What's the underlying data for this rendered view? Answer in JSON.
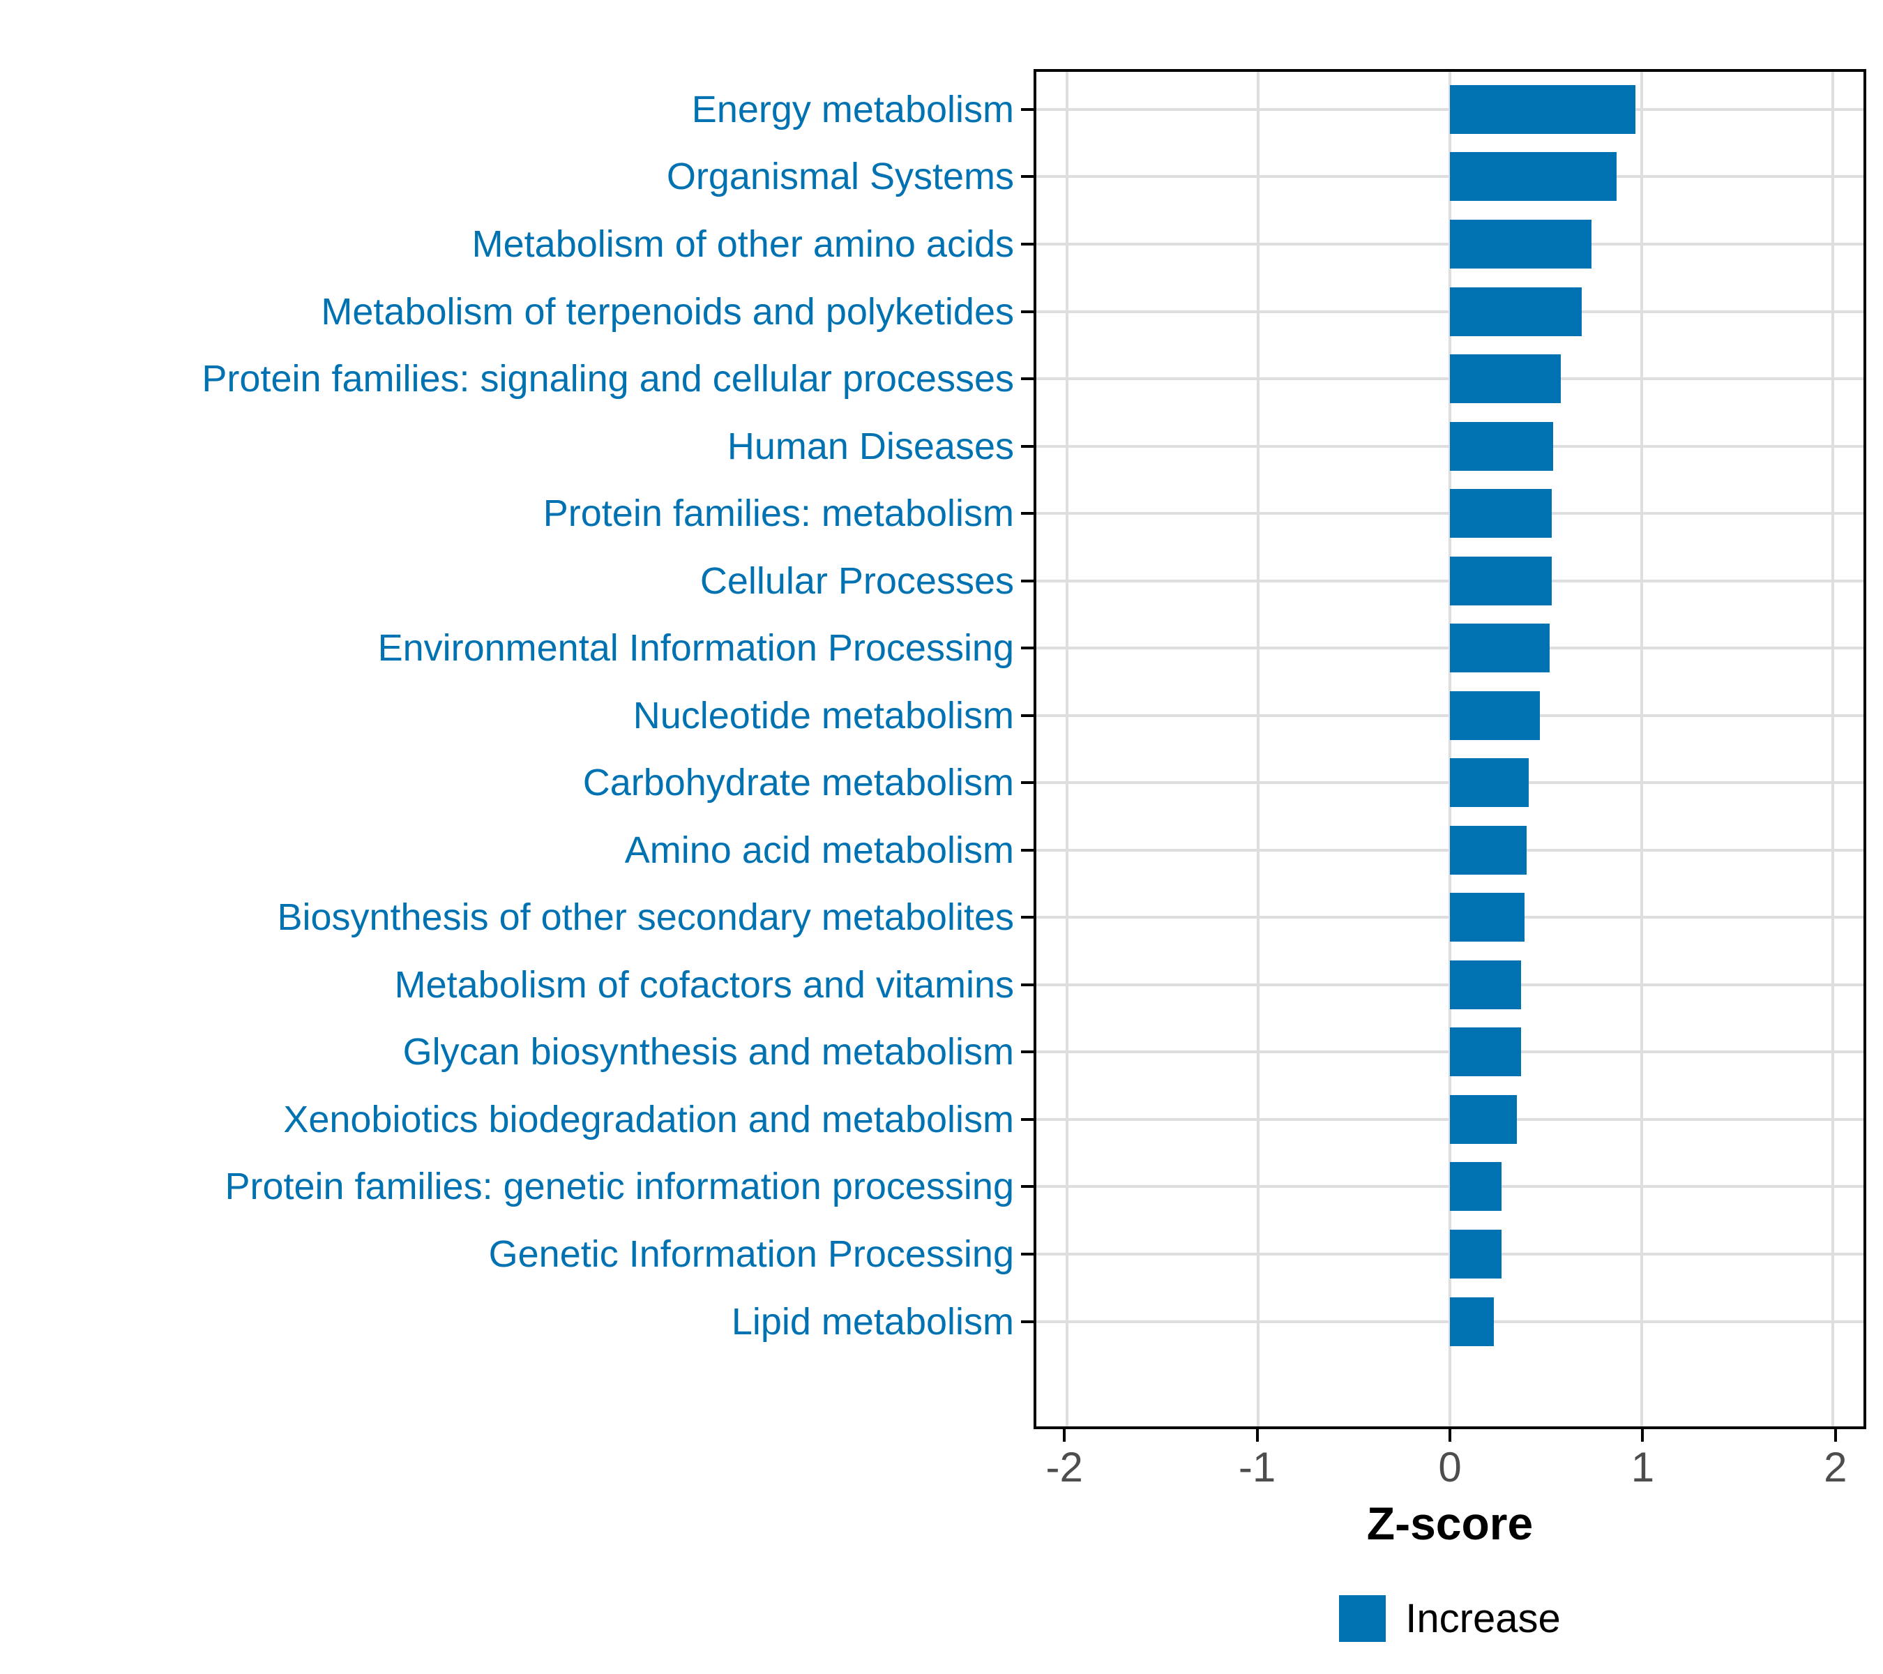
{
  "chart_data": {
    "type": "bar",
    "orientation": "horizontal",
    "xlabel": "Z-score",
    "categories": [
      "Energy metabolism",
      "Organismal Systems",
      "Metabolism of other amino acids",
      "Metabolism of terpenoids and polyketides",
      "Protein families: signaling and cellular processes",
      "Human Diseases",
      "Protein families: metabolism",
      "Cellular Processes",
      "Environmental Information Processing",
      "Nucleotide metabolism",
      "Carbohydrate metabolism",
      "Amino acid metabolism",
      "Biosynthesis of other secondary metabolites",
      "Metabolism of cofactors and vitamins",
      "Glycan biosynthesis and metabolism",
      "Xenobiotics biodegradation and metabolism",
      "Protein families: genetic information processing",
      "Genetic Information Processing",
      "Lipid metabolism"
    ],
    "values": [
      0.97,
      0.87,
      0.74,
      0.69,
      0.58,
      0.54,
      0.53,
      0.53,
      0.52,
      0.47,
      0.41,
      0.4,
      0.39,
      0.37,
      0.37,
      0.35,
      0.27,
      0.27,
      0.23
    ],
    "x_ticks": [
      "-2",
      "-1",
      "0",
      "1",
      "2"
    ],
    "x_tick_values": [
      -2,
      -1,
      0,
      1,
      2
    ],
    "xlim": [
      -2.16,
      2.16
    ],
    "grid": true,
    "legend": {
      "position": "bottom",
      "entries": [
        {
          "label": "Increase",
          "color": "#0072B2"
        }
      ]
    },
    "colors": {
      "bar": "#0072B2",
      "category_label": "#0072B2",
      "tick_label": "#4D4D4D",
      "axis_title": "#000000",
      "gridline": "#DEDEDE",
      "panel_border": "#000000",
      "background": "#FFFFFF"
    }
  }
}
